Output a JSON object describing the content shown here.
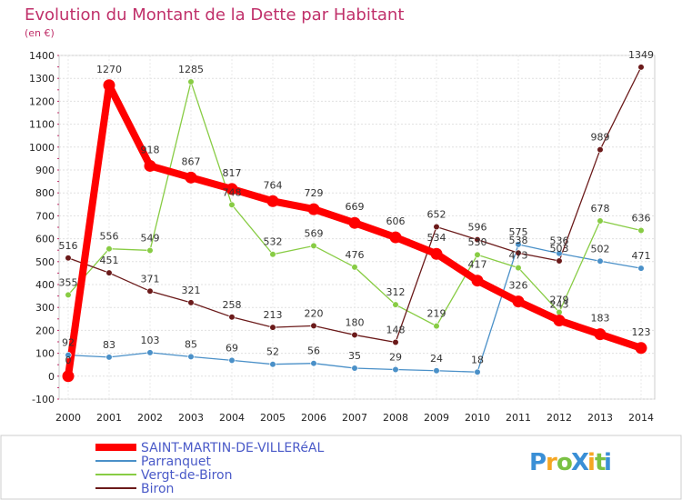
{
  "chart_data": {
    "type": "line",
    "title": "Evolution du Montant de la Dette par Habitant",
    "subtitle": "(en €)",
    "xlabel": "",
    "ylabel": "",
    "ylim": [
      -100,
      1400
    ],
    "y_ticks": [
      -100,
      0,
      100,
      200,
      300,
      400,
      500,
      600,
      700,
      800,
      900,
      1000,
      1100,
      1200,
      1300,
      1400
    ],
    "categories": [
      "2000",
      "2001",
      "2002",
      "2003",
      "2004",
      "2005",
      "2006",
      "2007",
      "2008",
      "2009",
      "2010",
      "2011",
      "2012",
      "2013",
      "2014"
    ],
    "grid": true,
    "legend_position": "bottom-left",
    "series": [
      {
        "name": "SAINT-MARTIN-DE-VILLERéAL",
        "color": "#ff0000",
        "values": [
          0,
          1270,
          918,
          867,
          817,
          764,
          729,
          669,
          606,
          534,
          417,
          326,
          243,
          183,
          123
        ]
      },
      {
        "name": "Parranquet",
        "color": "#4a90c8",
        "values": [
          92,
          83,
          103,
          85,
          69,
          52,
          56,
          35,
          29,
          24,
          18,
          575,
          536,
          502,
          471
        ]
      },
      {
        "name": "Vergt-de-Biron",
        "color": "#88cc44",
        "values": [
          355,
          556,
          549,
          1285,
          748,
          532,
          569,
          476,
          312,
          219,
          530,
          473,
          279,
          678,
          636
        ]
      },
      {
        "name": "Biron",
        "color": "#6b1a1a",
        "values": [
          516,
          451,
          371,
          321,
          258,
          213,
          220,
          180,
          148,
          652,
          596,
          538,
          503,
          989,
          1349
        ]
      }
    ]
  },
  "logo": {
    "text": "ProXiti",
    "letters": [
      "P",
      "r",
      "o",
      "X",
      "i",
      "t",
      "i"
    ],
    "colors": [
      "#3a8fd6",
      "#f5a623",
      "#7ac143",
      "#3a8fd6",
      "#f5a623",
      "#7ac143",
      "#3a8fd6"
    ]
  }
}
